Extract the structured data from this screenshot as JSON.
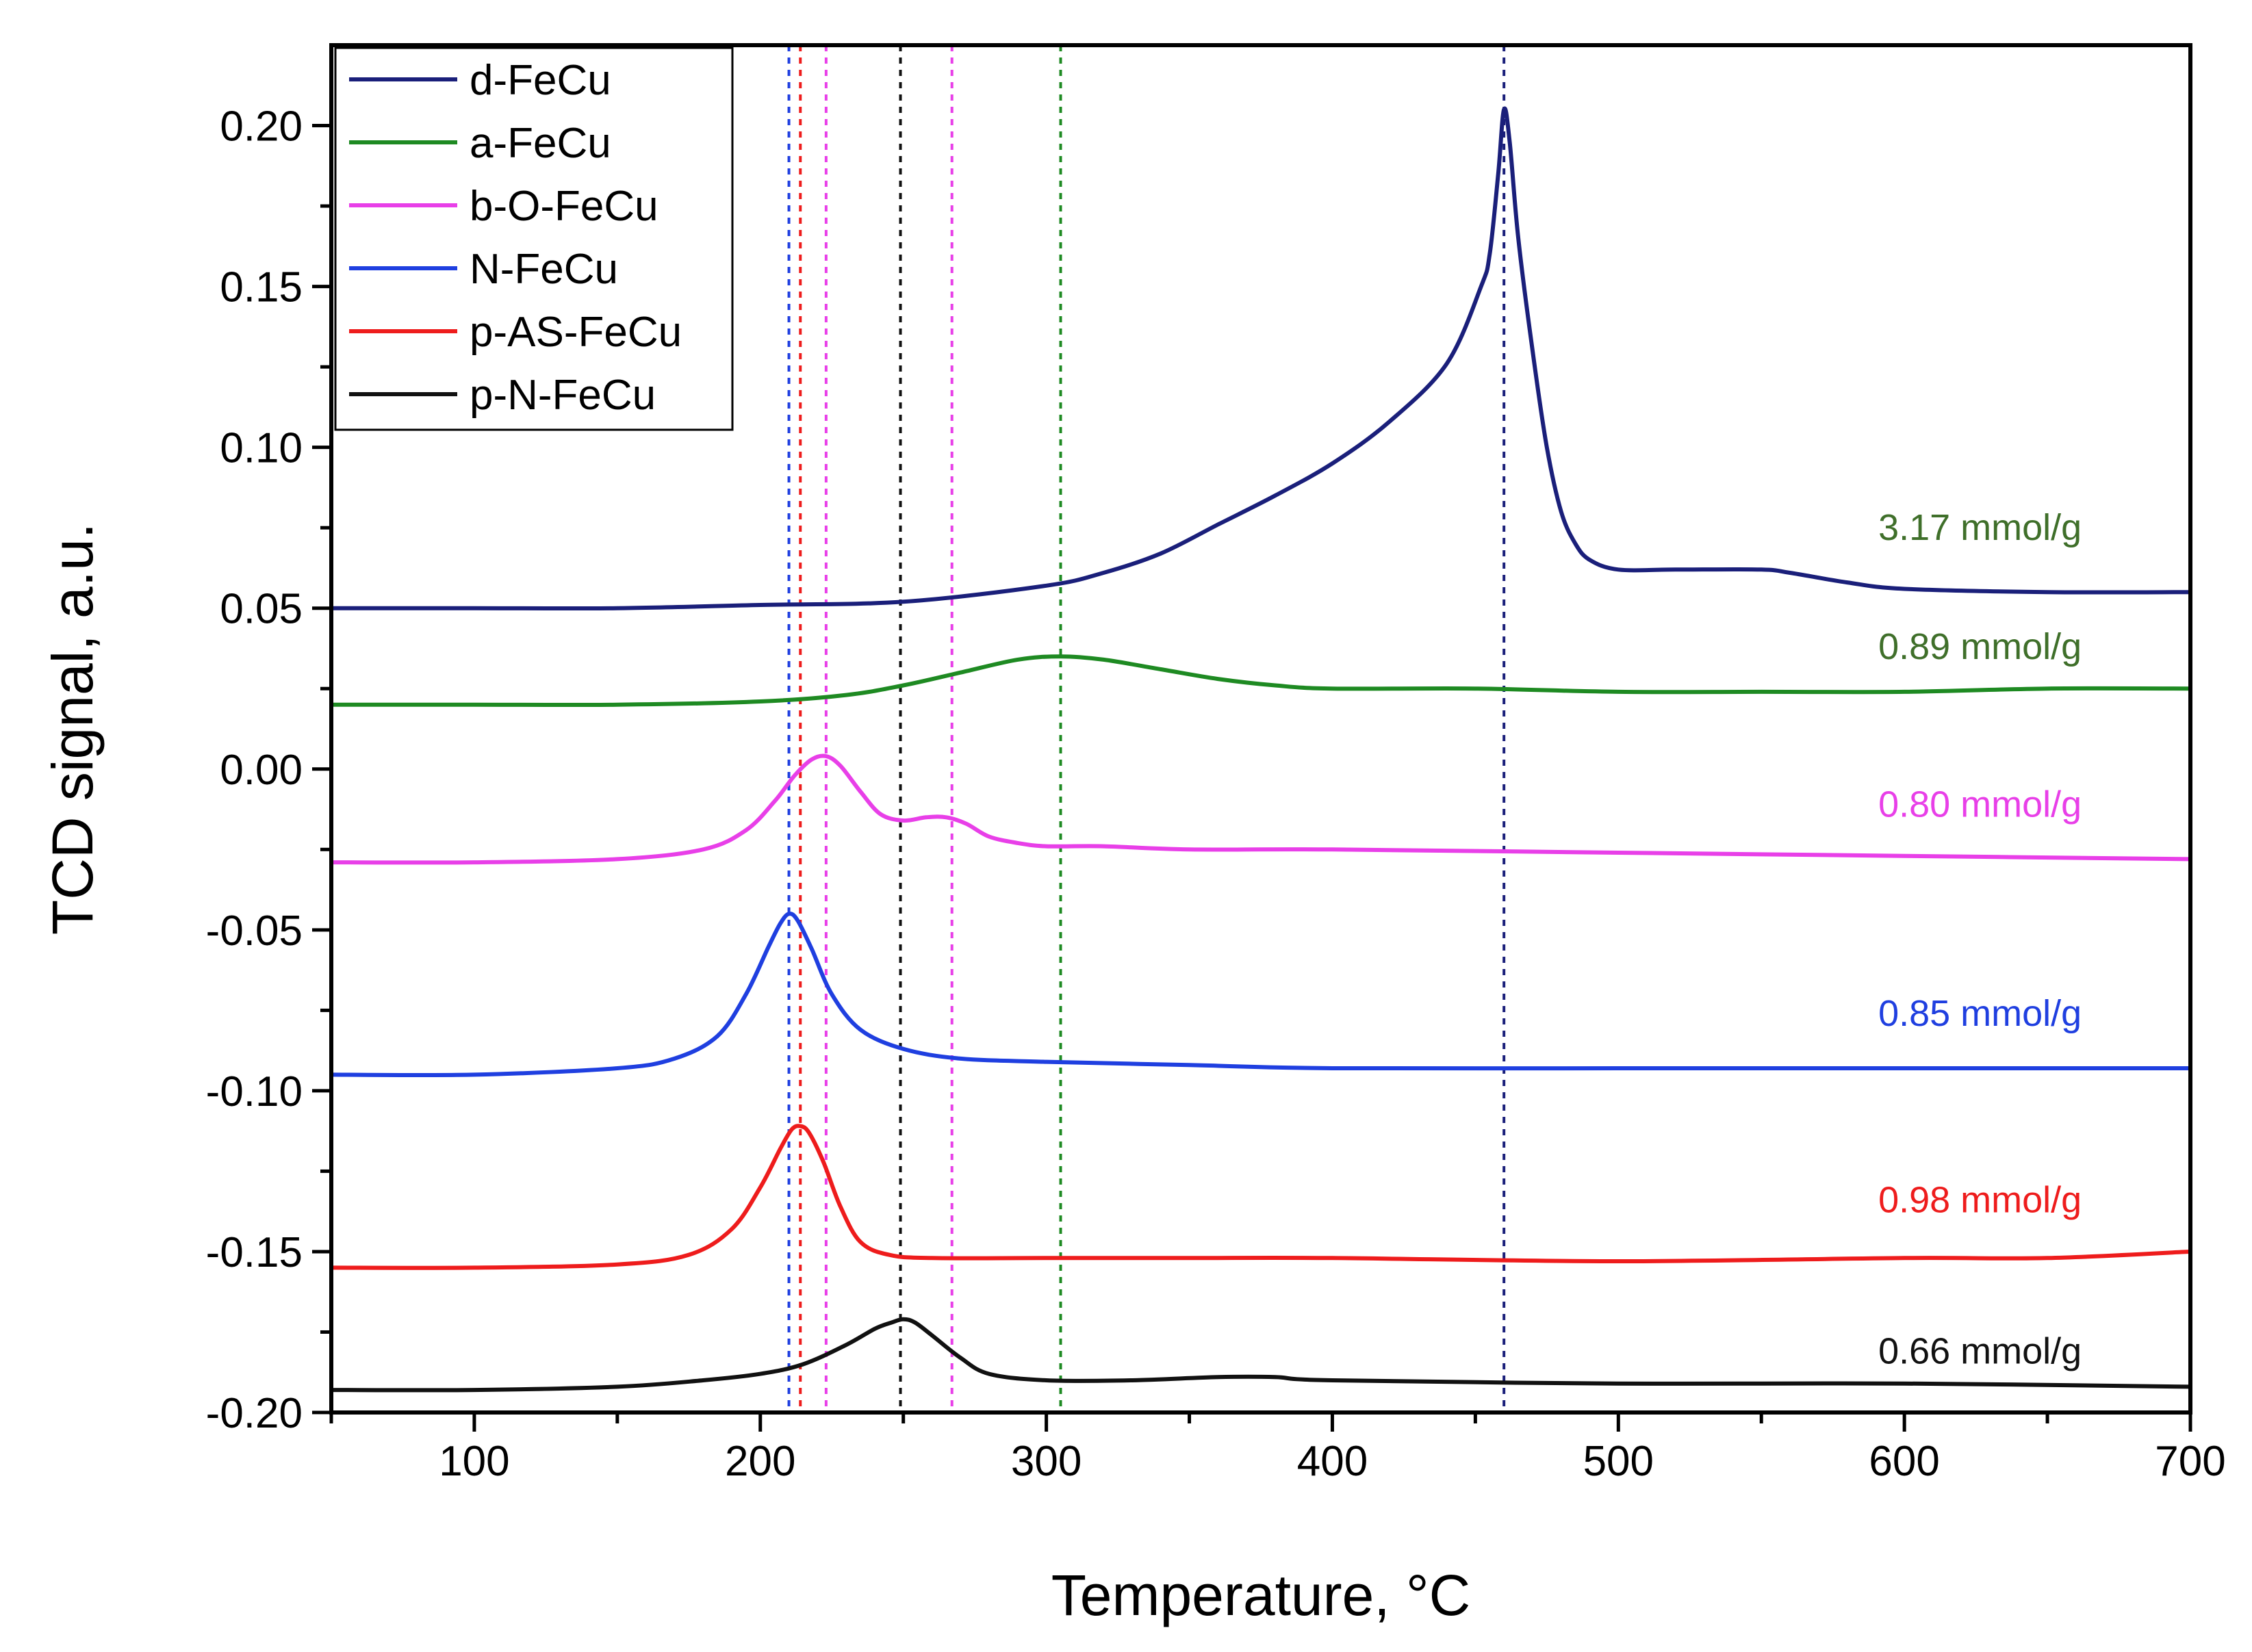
{
  "chart_data": {
    "type": "line",
    "title": "",
    "xlabel": "Temperature, °C",
    "ylabel": "TCD signal, a.u.",
    "xlim": [
      50,
      700
    ],
    "ylim": [
      -0.2,
      0.225
    ],
    "x_ticks": [
      100,
      200,
      300,
      400,
      500,
      600,
      700
    ],
    "x_tick_labels": [
      "100",
      "200",
      "300",
      "400",
      "500",
      "600",
      "700"
    ],
    "y_ticks": [
      -0.2,
      -0.15,
      -0.1,
      -0.05,
      0.0,
      0.05,
      0.1,
      0.15,
      0.2
    ],
    "y_tick_labels": [
      "-0.20",
      "-0.15",
      "-0.10",
      "-0.05",
      "0.00",
      "0.05",
      "0.10",
      "0.15",
      "0.20"
    ],
    "grid": false,
    "legend_position": "top-left",
    "series": [
      {
        "name": "d-FeCu",
        "color": "#1a1f7a",
        "x": [
          50,
          100,
          150,
          200,
          250,
          300,
          320,
          340,
          360,
          380,
          400,
          420,
          440,
          452,
          455,
          458,
          460,
          462,
          465,
          470,
          475,
          480,
          485,
          490,
          500,
          520,
          550,
          560,
          580,
          600,
          650,
          700
        ],
        "y": [
          0.05,
          0.05,
          0.05,
          0.051,
          0.052,
          0.057,
          0.061,
          0.067,
          0.076,
          0.085,
          0.095,
          0.108,
          0.126,
          0.15,
          0.16,
          0.185,
          0.205,
          0.195,
          0.165,
          0.13,
          0.1,
          0.08,
          0.07,
          0.065,
          0.062,
          0.062,
          0.062,
          0.061,
          0.058,
          0.056,
          0.055,
          0.055
        ]
      },
      {
        "name": "a-FeCu",
        "color": "#1e8a22",
        "x": [
          50,
          100,
          150,
          200,
          230,
          250,
          270,
          290,
          305,
          320,
          340,
          360,
          380,
          400,
          450,
          500,
          550,
          600,
          650,
          700
        ],
        "y": [
          0.02,
          0.02,
          0.02,
          0.021,
          0.023,
          0.026,
          0.03,
          0.034,
          0.035,
          0.034,
          0.031,
          0.028,
          0.026,
          0.025,
          0.025,
          0.024,
          0.024,
          0.024,
          0.025,
          0.025
        ]
      },
      {
        "name": "b-O-FeCu",
        "color": "#e83fe8",
        "x": [
          50,
          100,
          150,
          180,
          195,
          205,
          212,
          218,
          223,
          228,
          235,
          242,
          250,
          258,
          265,
          272,
          280,
          290,
          300,
          320,
          350,
          400,
          500,
          600,
          700
        ],
        "y": [
          -0.029,
          -0.029,
          -0.028,
          -0.025,
          -0.019,
          -0.01,
          -0.002,
          0.003,
          0.004,
          0.001,
          -0.007,
          -0.014,
          -0.016,
          -0.015,
          -0.015,
          -0.017,
          -0.021,
          -0.023,
          -0.024,
          -0.024,
          -0.025,
          -0.025,
          -0.026,
          -0.027,
          -0.028
        ]
      },
      {
        "name": "N-FeCu",
        "color": "#1f3fe0",
        "x": [
          50,
          100,
          150,
          170,
          185,
          195,
          203,
          207,
          210,
          213,
          218,
          225,
          235,
          250,
          270,
          300,
          350,
          400,
          500,
          600,
          700
        ],
        "y": [
          -0.095,
          -0.095,
          -0.093,
          -0.09,
          -0.083,
          -0.07,
          -0.055,
          -0.048,
          -0.045,
          -0.047,
          -0.056,
          -0.07,
          -0.081,
          -0.087,
          -0.09,
          -0.091,
          -0.092,
          -0.093,
          -0.093,
          -0.093,
          -0.093
        ]
      },
      {
        "name": "p-AS-FeCu",
        "color": "#ee1c1c",
        "x": [
          50,
          100,
          150,
          175,
          190,
          200,
          207,
          211,
          214,
          217,
          222,
          228,
          235,
          245,
          260,
          300,
          350,
          400,
          500,
          600,
          650,
          700
        ],
        "y": [
          -0.155,
          -0.155,
          -0.154,
          -0.151,
          -0.143,
          -0.13,
          -0.118,
          -0.112,
          -0.111,
          -0.113,
          -0.122,
          -0.136,
          -0.147,
          -0.151,
          -0.152,
          -0.152,
          -0.152,
          -0.152,
          -0.153,
          -0.152,
          -0.152,
          -0.15
        ]
      },
      {
        "name": "p-N-FeCu",
        "color": "#111111",
        "x": [
          50,
          100,
          150,
          180,
          200,
          215,
          230,
          240,
          246,
          250,
          254,
          260,
          270,
          280,
          300,
          330,
          360,
          380,
          400,
          500,
          600,
          700
        ],
        "y": [
          -0.193,
          -0.193,
          -0.192,
          -0.19,
          -0.188,
          -0.185,
          -0.179,
          -0.174,
          -0.172,
          -0.171,
          -0.172,
          -0.176,
          -0.183,
          -0.188,
          -0.19,
          -0.19,
          -0.189,
          -0.189,
          -0.19,
          -0.191,
          -0.191,
          -0.192
        ]
      }
    ],
    "reference_lines": [
      {
        "x": 210,
        "color": "#1f3fe0",
        "series": "N-FeCu"
      },
      {
        "x": 214,
        "color": "#ee1c1c",
        "series": "p-AS-FeCu"
      },
      {
        "x": 223,
        "color": "#e83fe8",
        "series": "b-O-FeCu"
      },
      {
        "x": 249,
        "color": "#111111",
        "series": "p-N-FeCu"
      },
      {
        "x": 267,
        "color": "#e83fe8",
        "series": "b-O-FeCu"
      },
      {
        "x": 305,
        "color": "#1e8a22",
        "series": "a-FeCu"
      },
      {
        "x": 460,
        "color": "#1a1f7a",
        "series": "d-FeCu"
      }
    ],
    "annotations": [
      {
        "text": "3.17 mmol/g",
        "x": 662,
        "y": 0.075,
        "color": "#3f6f2a"
      },
      {
        "text": "0.89 mmol/g",
        "x": 662,
        "y": 0.038,
        "color": "#3f6f2a"
      },
      {
        "text": "0.80 mmol/g",
        "x": 662,
        "y": -0.011,
        "color": "#e83fe8"
      },
      {
        "text": "0.85 mmol/g",
        "x": 662,
        "y": -0.076,
        "color": "#1f3fe0"
      },
      {
        "text": "0.98 mmol/g",
        "x": 662,
        "y": -0.134,
        "color": "#ee1c1c"
      },
      {
        "text": "0.66 mmol/g",
        "x": 662,
        "y": -0.181,
        "color": "#111111"
      }
    ]
  }
}
